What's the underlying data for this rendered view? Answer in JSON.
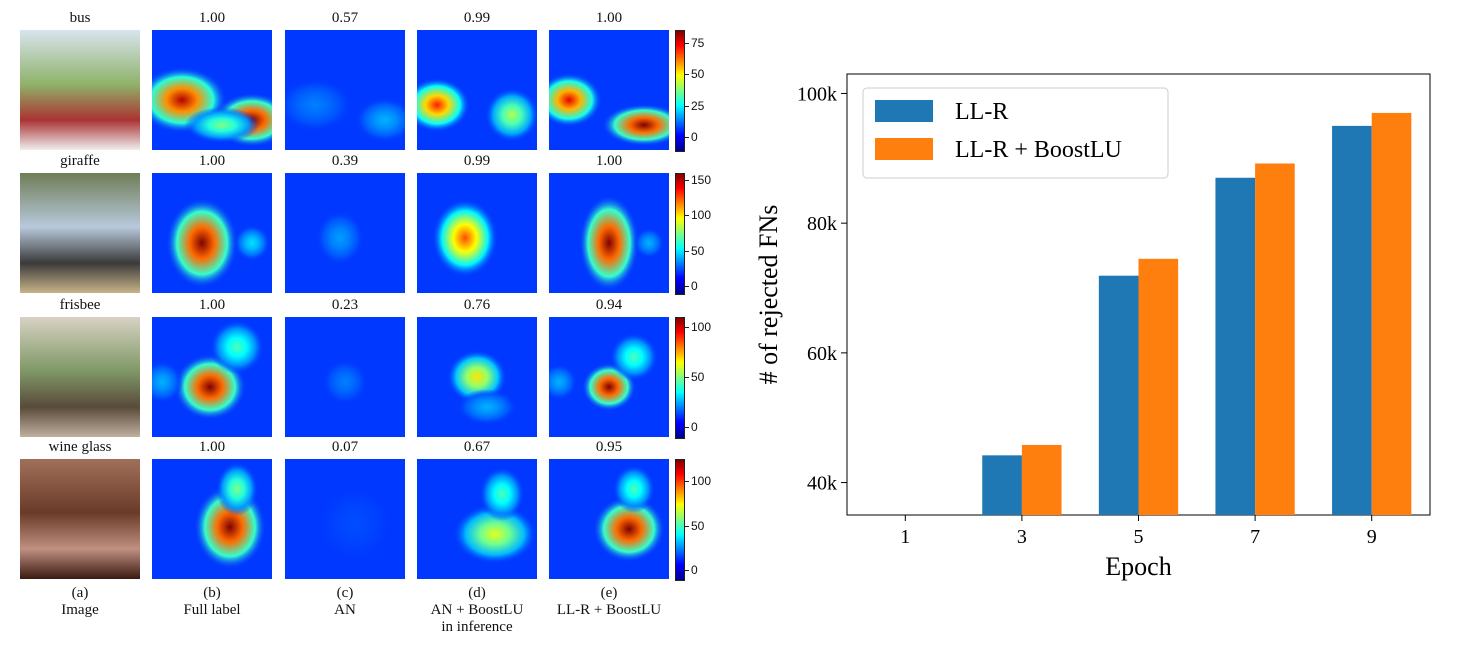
{
  "heatmap_figure": {
    "rows": [
      {
        "label": "bus",
        "scores": [
          "1.00",
          "0.57",
          "0.99",
          "1.00"
        ],
        "cbar_ticks": [
          "75",
          "50",
          "25",
          "0"
        ],
        "cbar_max": 85
      },
      {
        "label": "giraffe",
        "scores": [
          "1.00",
          "0.39",
          "0.99",
          "1.00"
        ],
        "cbar_ticks": [
          "150",
          "100",
          "50",
          "0"
        ],
        "cbar_max": 160
      },
      {
        "label": "frisbee",
        "scores": [
          "1.00",
          "0.23",
          "0.76",
          "0.94"
        ],
        "cbar_ticks": [
          "100",
          "50",
          "0"
        ],
        "cbar_max": 110
      },
      {
        "label": "wine glass",
        "scores": [
          "1.00",
          "0.07",
          "0.67",
          "0.95"
        ],
        "cbar_ticks": [
          "100",
          "50",
          "0"
        ],
        "cbar_max": 125
      }
    ],
    "columns": [
      {
        "letter": "(a)",
        "name": "Image",
        "name2": ""
      },
      {
        "letter": "(b)",
        "name": "Full label",
        "name2": ""
      },
      {
        "letter": "(c)",
        "name": "AN",
        "name2": ""
      },
      {
        "letter": "(d)",
        "name": "AN + BoostLU",
        "name2": "in inference"
      },
      {
        "letter": "(e)",
        "name": "LL-R + BoostLU",
        "name2": ""
      }
    ]
  },
  "chart_data": {
    "type": "bar",
    "categories": [
      "1",
      "3",
      "5",
      "7",
      "9"
    ],
    "series": [
      {
        "name": "LL-R",
        "color": "#1f77b4",
        "values": [
          null,
          44200,
          71900,
          87000,
          95000
        ]
      },
      {
        "name": "LL-R + BoostLU",
        "color": "#ff7f0e",
        "values": [
          null,
          45800,
          74500,
          89200,
          97000
        ]
      }
    ],
    "xlabel": "Epoch",
    "ylabel": "# of rejected FNs",
    "ylim": [
      35000,
      103000
    ],
    "yticks": [
      40000,
      60000,
      80000,
      100000
    ],
    "ytick_labels": [
      "40k",
      "60k",
      "80k",
      "100k"
    ],
    "legend_position": "top-left",
    "grid": false
  }
}
